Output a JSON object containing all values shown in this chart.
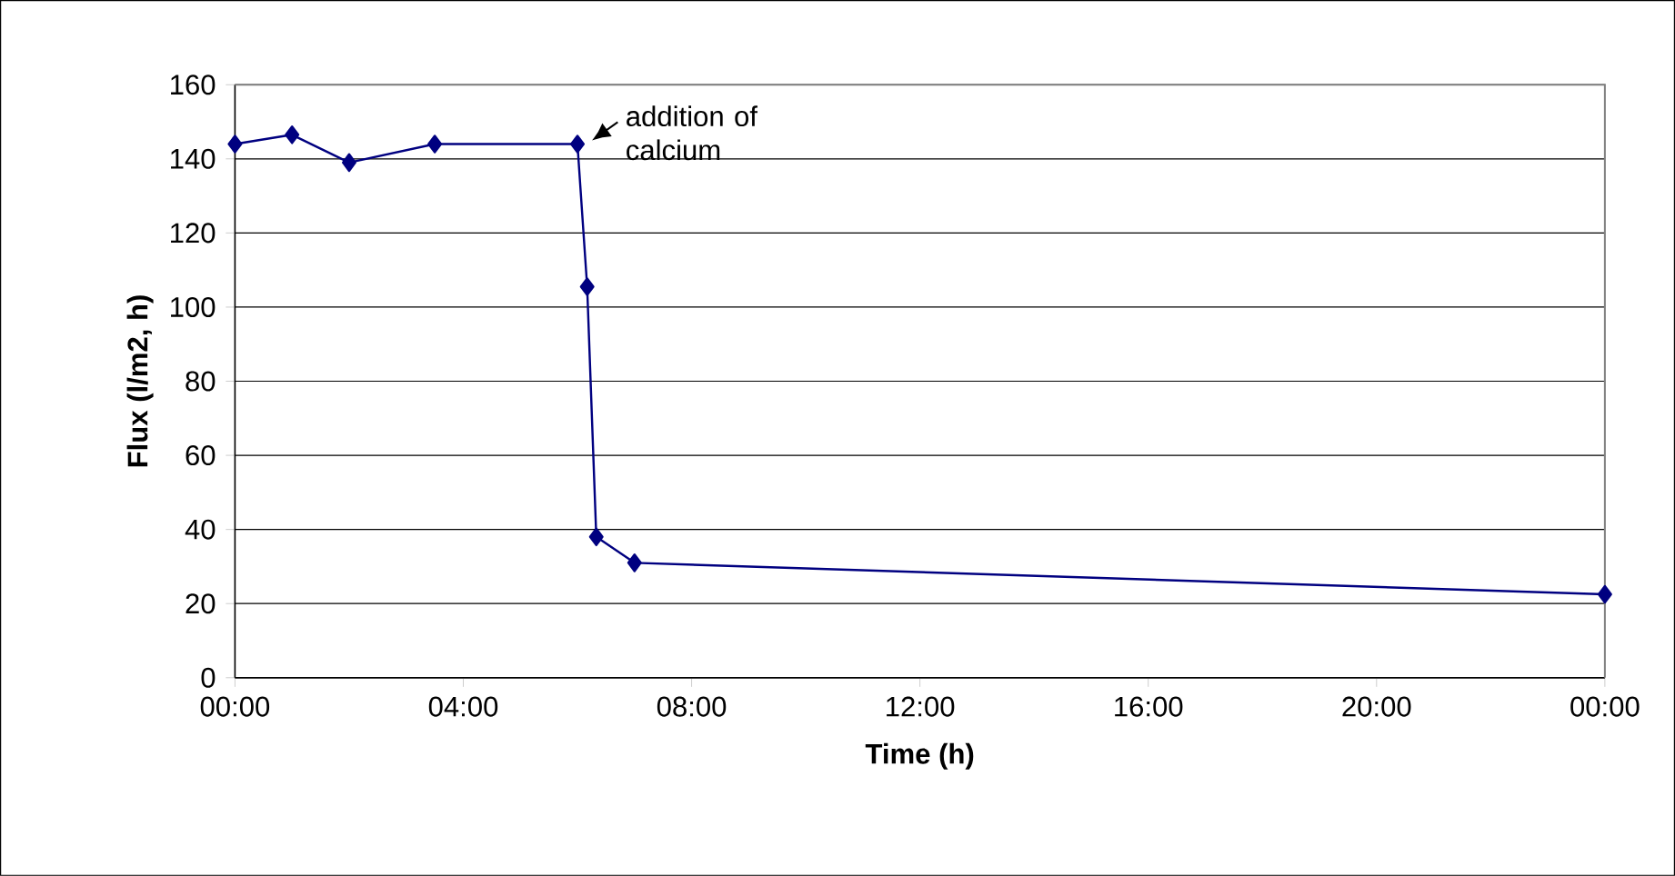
{
  "chart_data": {
    "type": "line",
    "xlabel": "Time (h)",
    "ylabel": "Flux (l/m2, h)",
    "x": [
      0,
      1,
      2,
      3.5,
      6,
      6.17,
      6.33,
      7,
      24
    ],
    "series": [
      {
        "color": "#000080",
        "values": [
          144,
          146.5,
          139,
          144,
          144,
          105.5,
          38,
          31,
          22.5
        ]
      }
    ],
    "xlim": [
      0,
      24
    ],
    "xticks": [
      {
        "value": 0,
        "label": "00:00"
      },
      {
        "value": 4,
        "label": "04:00"
      },
      {
        "value": 8,
        "label": "08:00"
      },
      {
        "value": 12,
        "label": "12:00"
      },
      {
        "value": 16,
        "label": "16:00"
      },
      {
        "value": 20,
        "label": "20:00"
      },
      {
        "value": 24,
        "label": "00:00"
      }
    ],
    "ylim": [
      0,
      160
    ],
    "yticks": [
      0,
      20,
      40,
      60,
      80,
      100,
      120,
      140,
      160
    ],
    "grid": "y",
    "marker": "diamond",
    "line_style": "solid",
    "annotations": [
      {
        "text": "addition of calcium",
        "x": 6,
        "y": 144
      }
    ]
  }
}
